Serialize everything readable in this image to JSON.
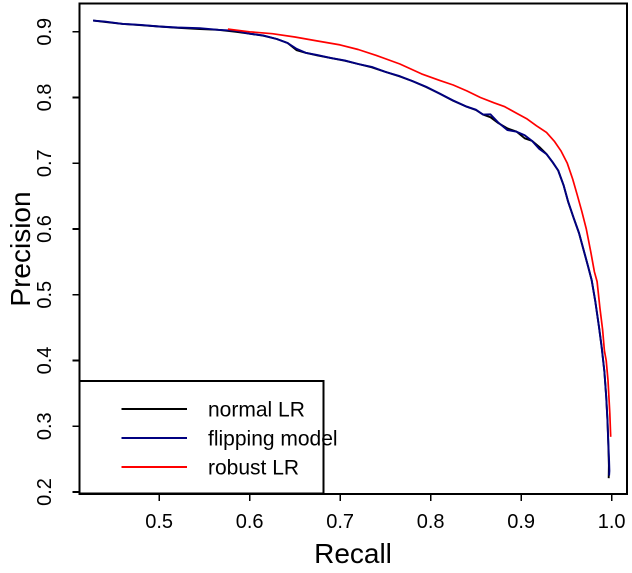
{
  "figure": {
    "background": "#ffffff",
    "border_color": "#000000"
  },
  "chart_data": {
    "type": "line",
    "title": "",
    "xlabel": "Recall",
    "ylabel": "Precision",
    "xlim": [
      0.412,
      1.017
    ],
    "ylim": [
      0.197,
      0.943
    ],
    "x_ticks": [
      0.5,
      0.6,
      0.7,
      0.8,
      0.9,
      1.0
    ],
    "y_ticks": [
      0.2,
      0.3,
      0.4,
      0.5,
      0.6,
      0.7,
      0.8,
      0.9
    ],
    "grid": false,
    "legend_position": "bottom-left",
    "series": [
      {
        "name": "normal LR",
        "color": "#000000",
        "points": [
          [
            0.427,
            0.917
          ],
          [
            0.44,
            0.915
          ],
          [
            0.46,
            0.912
          ],
          [
            0.48,
            0.91
          ],
          [
            0.5,
            0.908
          ],
          [
            0.52,
            0.906
          ],
          [
            0.545,
            0.904
          ],
          [
            0.565,
            0.903
          ],
          [
            0.585,
            0.9
          ],
          [
            0.6,
            0.897
          ],
          [
            0.615,
            0.894
          ],
          [
            0.63,
            0.889
          ],
          [
            0.642,
            0.883
          ],
          [
            0.652,
            0.872
          ],
          [
            0.662,
            0.868
          ],
          [
            0.675,
            0.864
          ],
          [
            0.69,
            0.86
          ],
          [
            0.705,
            0.856
          ],
          [
            0.72,
            0.851
          ],
          [
            0.735,
            0.846
          ],
          [
            0.75,
            0.839
          ],
          [
            0.766,
            0.832
          ],
          [
            0.78,
            0.825
          ],
          [
            0.795,
            0.816
          ],
          [
            0.81,
            0.806
          ],
          [
            0.825,
            0.795
          ],
          [
            0.84,
            0.786
          ],
          [
            0.85,
            0.781
          ],
          [
            0.858,
            0.774
          ],
          [
            0.866,
            0.77
          ],
          [
            0.875,
            0.761
          ],
          [
            0.885,
            0.753
          ],
          [
            0.895,
            0.748
          ],
          [
            0.904,
            0.738
          ],
          [
            0.912,
            0.734
          ],
          [
            0.92,
            0.725
          ],
          [
            0.928,
            0.714
          ],
          [
            0.935,
            0.701
          ],
          [
            0.941,
            0.689
          ],
          [
            0.947,
            0.666
          ],
          [
            0.952,
            0.641
          ],
          [
            0.958,
            0.617
          ],
          [
            0.964,
            0.594
          ],
          [
            0.969,
            0.568
          ],
          [
            0.974,
            0.543
          ],
          [
            0.978,
            0.522
          ],
          [
            0.982,
            0.49
          ],
          [
            0.986,
            0.452
          ],
          [
            0.989,
            0.42
          ],
          [
            0.992,
            0.383
          ],
          [
            0.994,
            0.345
          ],
          [
            0.9955,
            0.308
          ],
          [
            0.9965,
            0.268
          ],
          [
            0.997,
            0.24
          ],
          [
            0.9968,
            0.221
          ]
        ]
      },
      {
        "name": "flipping model",
        "color": "#000080",
        "points": [
          [
            0.427,
            0.917
          ],
          [
            0.44,
            0.9155
          ],
          [
            0.46,
            0.912
          ],
          [
            0.48,
            0.9105
          ],
          [
            0.5,
            0.908
          ],
          [
            0.52,
            0.9065
          ],
          [
            0.545,
            0.9055
          ],
          [
            0.565,
            0.903
          ],
          [
            0.585,
            0.9015
          ],
          [
            0.6,
            0.897
          ],
          [
            0.615,
            0.8945
          ],
          [
            0.63,
            0.889
          ],
          [
            0.642,
            0.883
          ],
          [
            0.652,
            0.874
          ],
          [
            0.662,
            0.868
          ],
          [
            0.675,
            0.8645
          ],
          [
            0.69,
            0.86
          ],
          [
            0.705,
            0.8565
          ],
          [
            0.72,
            0.851
          ],
          [
            0.735,
            0.8465
          ],
          [
            0.75,
            0.839
          ],
          [
            0.766,
            0.8325
          ],
          [
            0.78,
            0.825
          ],
          [
            0.795,
            0.8165
          ],
          [
            0.81,
            0.806
          ],
          [
            0.825,
            0.7955
          ],
          [
            0.84,
            0.786
          ],
          [
            0.85,
            0.7815
          ],
          [
            0.858,
            0.774
          ],
          [
            0.866,
            0.7745
          ],
          [
            0.875,
            0.7615
          ],
          [
            0.885,
            0.7505
          ],
          [
            0.895,
            0.748
          ],
          [
            0.904,
            0.7425
          ],
          [
            0.912,
            0.734
          ],
          [
            0.92,
            0.722
          ],
          [
            0.928,
            0.714
          ],
          [
            0.935,
            0.7015
          ],
          [
            0.941,
            0.689
          ],
          [
            0.947,
            0.666
          ],
          [
            0.952,
            0.6415
          ],
          [
            0.958,
            0.617
          ],
          [
            0.964,
            0.594
          ],
          [
            0.969,
            0.5685
          ],
          [
            0.974,
            0.543
          ],
          [
            0.978,
            0.522
          ],
          [
            0.982,
            0.49
          ],
          [
            0.986,
            0.452
          ],
          [
            0.989,
            0.42
          ],
          [
            0.992,
            0.383
          ],
          [
            0.994,
            0.345
          ],
          [
            0.9955,
            0.308
          ],
          [
            0.9965,
            0.272
          ],
          [
            0.9972,
            0.247
          ],
          [
            0.9975,
            0.232
          ],
          [
            0.9972,
            0.225
          ]
        ]
      },
      {
        "name": "robust LR",
        "color": "#ff0000",
        "points": [
          [
            0.576,
            0.904
          ],
          [
            0.6,
            0.9
          ],
          [
            0.625,
            0.897
          ],
          [
            0.65,
            0.892
          ],
          [
            0.675,
            0.886
          ],
          [
            0.7,
            0.88
          ],
          [
            0.72,
            0.873
          ],
          [
            0.74,
            0.864
          ],
          [
            0.766,
            0.851
          ],
          [
            0.79,
            0.836
          ],
          [
            0.81,
            0.826
          ],
          [
            0.825,
            0.819
          ],
          [
            0.84,
            0.81
          ],
          [
            0.855,
            0.8
          ],
          [
            0.87,
            0.792
          ],
          [
            0.882,
            0.786
          ],
          [
            0.895,
            0.776
          ],
          [
            0.906,
            0.768
          ],
          [
            0.917,
            0.757
          ],
          [
            0.928,
            0.747
          ],
          [
            0.937,
            0.733
          ],
          [
            0.944,
            0.719
          ],
          [
            0.951,
            0.7
          ],
          [
            0.957,
            0.676
          ],
          [
            0.962,
            0.652
          ],
          [
            0.967,
            0.627
          ],
          [
            0.972,
            0.6
          ],
          [
            0.977,
            0.565
          ],
          [
            0.981,
            0.535
          ],
          [
            0.984,
            0.52
          ],
          [
            0.987,
            0.48
          ],
          [
            0.99,
            0.447
          ],
          [
            0.992,
            0.415
          ],
          [
            0.994,
            0.4
          ],
          [
            0.996,
            0.37
          ],
          [
            0.997,
            0.345
          ],
          [
            0.998,
            0.32
          ],
          [
            0.9985,
            0.3
          ],
          [
            0.999,
            0.284
          ]
        ]
      }
    ]
  }
}
